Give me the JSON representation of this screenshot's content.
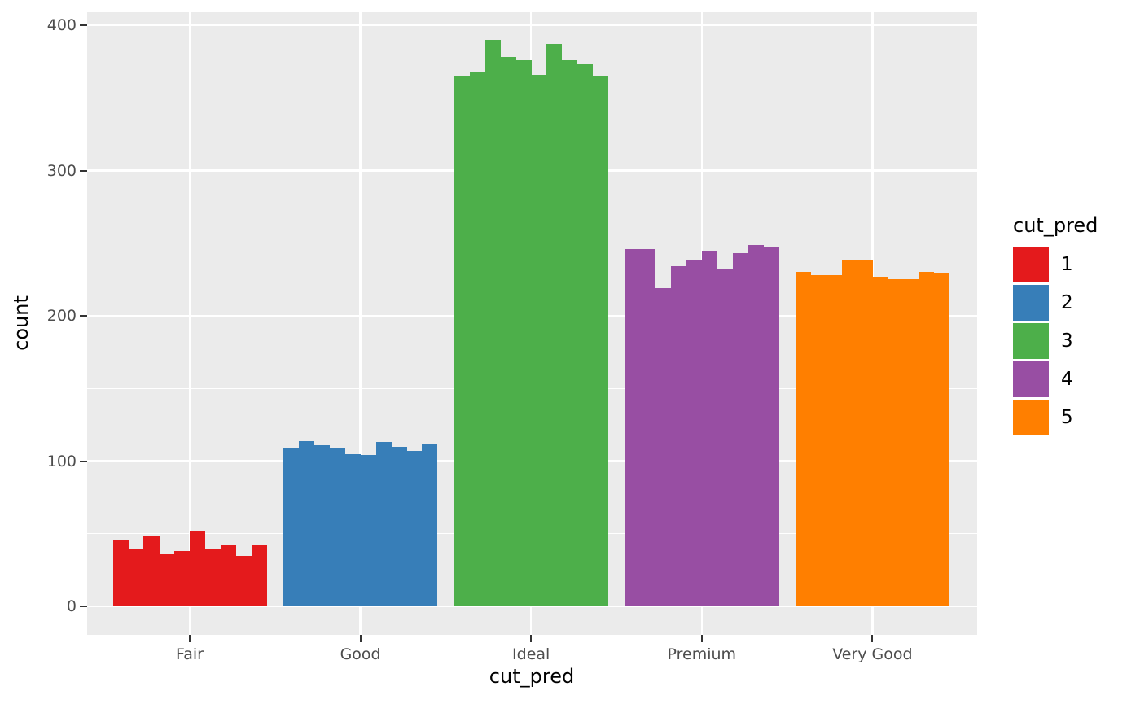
{
  "chart_data": {
    "type": "bar",
    "variant": "grouped thin bars (histogram-like) per category, ggplot2 grey theme",
    "title": "",
    "xlabel": "cut_pred",
    "ylabel": "count",
    "categories": [
      "Fair",
      "Good",
      "Ideal",
      "Premium",
      "Very Good"
    ],
    "bars_per_category": 10,
    "series": [
      {
        "category": "Fair",
        "legend_label": "1",
        "color": "#E41A1C",
        "values": [
          46,
          40,
          49,
          36,
          38,
          52,
          40,
          42,
          35,
          42
        ]
      },
      {
        "category": "Good",
        "legend_label": "2",
        "color": "#377EB8",
        "values": [
          109,
          114,
          111,
          109,
          105,
          104,
          113,
          110,
          107,
          112
        ]
      },
      {
        "category": "Ideal",
        "legend_label": "3",
        "color": "#4DAF4A",
        "values": [
          365,
          368,
          390,
          378,
          376,
          366,
          387,
          376,
          373,
          365
        ]
      },
      {
        "category": "Premium",
        "legend_label": "4",
        "color": "#984EA3",
        "values": [
          246,
          246,
          219,
          234,
          238,
          244,
          232,
          243,
          249,
          247
        ]
      },
      {
        "category": "Very Good",
        "legend_label": "5",
        "color": "#FF7F00",
        "values": [
          230,
          228,
          228,
          238,
          238,
          227,
          225,
          225,
          230,
          229
        ]
      }
    ],
    "y_axis": {
      "major_ticks": [
        0,
        100,
        200,
        300,
        400
      ],
      "minor_ticks": [
        50,
        150,
        250,
        350
      ],
      "lim": [
        -19,
        409
      ]
    },
    "legend": {
      "title": "cut_pred",
      "position": "right",
      "entries": [
        {
          "label": "1",
          "color": "#E41A1C"
        },
        {
          "label": "2",
          "color": "#377EB8"
        },
        {
          "label": "3",
          "color": "#4DAF4A"
        },
        {
          "label": "4",
          "color": "#984EA3"
        },
        {
          "label": "5",
          "color": "#FF7F00"
        }
      ]
    },
    "style": {
      "outer_bg": "#FFFFFF",
      "panel_bg": "#EBEBEB",
      "grid_color": "#FFFFFF",
      "tick_label_color": "#4D4D4D",
      "axis_title_color": "#000000",
      "tick_mark_color": "#333333"
    },
    "grid": true
  }
}
